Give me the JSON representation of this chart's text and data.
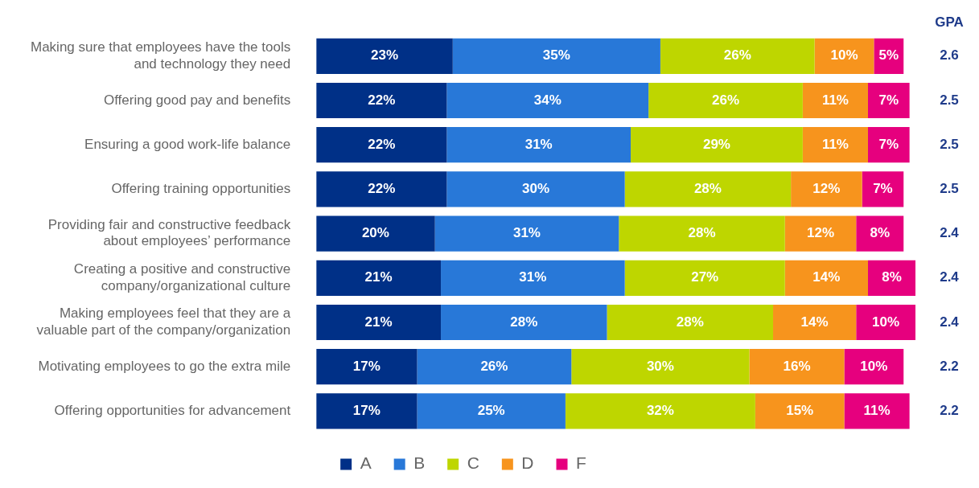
{
  "chart_data": {
    "type": "bar",
    "orientation": "horizontal",
    "stacked": true,
    "legend": "bottom",
    "tick_labels": "y",
    "categories": [
      "Making sure that employees have the tools and technology they need",
      "Offering good pay and benefits",
      "Ensuring a good work-life balance",
      "Offering training opportunities",
      "Providing fair and constructive feedback about employees’ performance",
      "Creating a positive and constructive company/organizational culture",
      "Making employees feel that they are a valuable part of the company/organization",
      "Motivating employees to go the extra mile",
      "Offering opportunities for advancement"
    ],
    "series": [
      {
        "name": "A",
        "color": "#003087",
        "values": [
          23,
          22,
          22,
          22,
          20,
          21,
          21,
          17,
          17
        ],
        "value_labels": [
          "23%",
          "22%",
          "22%",
          "22%",
          "20%",
          "21%",
          "21%",
          "17%",
          "17%"
        ]
      },
      {
        "name": "B",
        "color": "#2878d8",
        "values": [
          35,
          34,
          31,
          30,
          31,
          31,
          28,
          26,
          25
        ],
        "value_labels": [
          "35%",
          "34%",
          "31%",
          "30%",
          "31%",
          "31%",
          "28%",
          "26%",
          "25%"
        ]
      },
      {
        "name": "C",
        "color": "#bed600",
        "values": [
          26,
          26,
          29,
          28,
          28,
          27,
          28,
          30,
          32
        ],
        "value_labels": [
          "26%",
          "26%",
          "29%",
          "28%",
          "28%",
          "27%",
          "28%",
          "30%",
          "32%"
        ]
      },
      {
        "name": "D",
        "color": "#f7941d",
        "values": [
          10,
          11,
          11,
          12,
          12,
          14,
          14,
          16,
          15
        ],
        "value_labels": [
          "10%",
          "11%",
          "11%",
          "12%",
          "12%",
          "14%",
          "14%",
          "16%",
          "15%"
        ]
      },
      {
        "name": "F",
        "color": "#e6007e",
        "values": [
          5,
          7,
          7,
          7,
          8,
          8,
          10,
          10,
          11
        ],
        "value_labels": [
          "5%",
          "7%",
          "7%",
          "7%",
          "8%",
          "8%",
          "10%",
          "10%",
          "11%"
        ]
      }
    ],
    "annotations": [
      "GPA",
      "2.6",
      "2.5",
      "2.5",
      "2.5",
      "2.4",
      "2.4",
      "2.4",
      "2.2",
      "2.2"
    ]
  }
}
